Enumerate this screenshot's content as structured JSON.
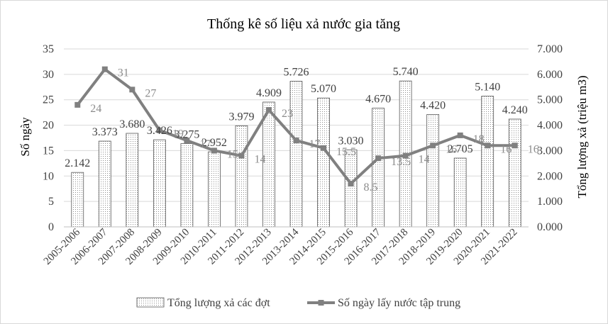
{
  "chart_data": {
    "type": "bar",
    "title": "Thống kê số liệu xả nước gia tăng",
    "ylabel_left": "Số ngày",
    "ylabel_right": "Tổng lượng xả (triệu m3)",
    "ylim_left": [
      0,
      35
    ],
    "ylim_right": [
      0,
      7
    ],
    "yticks_left": [
      "0",
      "5",
      "10",
      "15",
      "20",
      "25",
      "30",
      "35"
    ],
    "yticks_right": [
      "0.000",
      "1.000",
      "2.000",
      "3.000",
      "4.000",
      "5.000",
      "6.000",
      "7.000"
    ],
    "categories": [
      "2005-2006",
      "2006-2007",
      "2007-2008",
      "2008-2009",
      "2009-2010",
      "2010-2011",
      "2011-2012",
      "2012-2013",
      "2013-2014",
      "2014-2015",
      "2015-2016",
      "2016-2017",
      "2017-2018",
      "2018-2019",
      "2019-2020",
      "2020-2021",
      "2021-2022"
    ],
    "series": [
      {
        "name": "Tổng lượng xả các đợt",
        "type": "bar",
        "axis": "right",
        "values": [
          2.142,
          3.373,
          3.68,
          3.426,
          3.275,
          2.952,
          3.979,
          4.909,
          5.726,
          5.07,
          3.03,
          4.67,
          5.74,
          4.42,
          2.705,
          5.14,
          4.24
        ],
        "labels": [
          "2.142",
          "3.373",
          "3.680",
          "3.426",
          "3.275",
          "2.952",
          "3.979",
          "4.909",
          "5.726",
          "5.070",
          "3.030",
          "4.670",
          "5.740",
          "4.420",
          "2.705",
          "5.140",
          "4.240"
        ]
      },
      {
        "name": "Số ngày lấy nước tập trung",
        "type": "line",
        "axis": "left",
        "values": [
          24,
          31,
          27,
          19,
          17,
          15,
          14,
          23,
          17,
          15.5,
          8.5,
          13.5,
          14,
          16,
          18,
          16,
          16
        ],
        "labels": [
          "24",
          "31",
          "27",
          "19",
          "17",
          "15",
          "14",
          "23",
          "17",
          "15.5",
          "8.5",
          "13.5",
          "14",
          "16",
          "18",
          "16",
          "16"
        ]
      }
    ],
    "legend_position": "bottom",
    "grid": true,
    "colors": {
      "bar_fill": "#ffffff",
      "bar_dots": "#8c8c8c",
      "bar_stroke": "#555555",
      "line": "#808080",
      "grid": "#d9d9d9",
      "text": "#404040"
    }
  }
}
